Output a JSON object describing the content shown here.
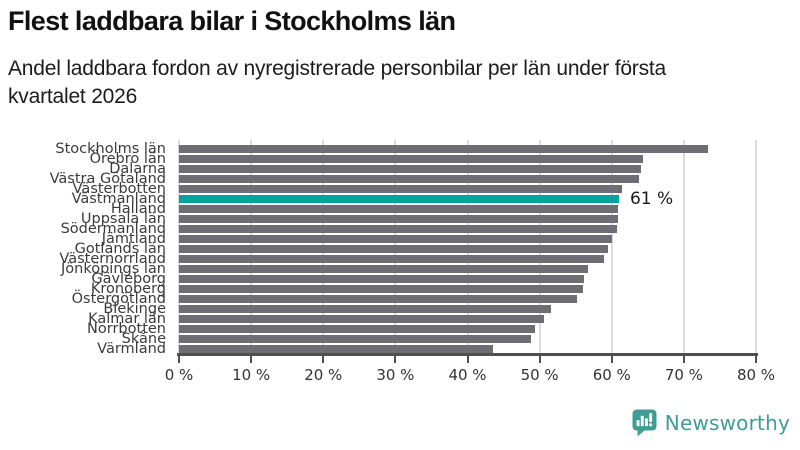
{
  "header": {
    "title": "Flest laddbara bilar i Stockholms län",
    "subtitle_lines": [
      "Andel laddbara fordon av nyregistrerade personbilar per län under första",
      "kvartalet 2026"
    ]
  },
  "footer": {
    "brand": "Newsworthy"
  },
  "colors": {
    "bar": "#6d6d73",
    "highlight": "#00a49c",
    "gridline": "#dbdbdb",
    "axis": "#4f4f4f",
    "tick_text": "#333333",
    "category_text": "#3b3b3b",
    "title_text": "#111111",
    "brand_teal": "#3f9d94",
    "background": "#ffffff"
  },
  "chart_data": {
    "type": "bar",
    "orientation": "horizontal",
    "title": "Flest laddbara bilar i Stockholms län",
    "subtitle": "Andel laddbara fordon av nyregistrerade personbilar per län under första kvartalet 2026",
    "unit": "%",
    "categories": [
      "Stockholms län",
      "Örebro län",
      "Dalarna",
      "Västra Götaland",
      "Västerbotten",
      "Västmanland",
      "Halland",
      "Uppsala län",
      "Södermanland",
      "Jämtland",
      "Gotlands län",
      "Västernorrland",
      "Jönköpings län",
      "Gävleborg",
      "Kronoberg",
      "Östergötland",
      "Blekinge",
      "Kalmar län",
      "Norrbotten",
      "Skåne",
      "Värmland"
    ],
    "values": [
      73.4,
      64.3,
      64.0,
      63.8,
      61.4,
      61.0,
      60.9,
      60.8,
      60.7,
      60.1,
      59.5,
      58.9,
      56.7,
      56.1,
      56.0,
      55.2,
      51.6,
      50.6,
      49.3,
      48.8,
      43.5
    ],
    "highlight": {
      "category": "Västmanland",
      "value": 61,
      "label": "61 %"
    },
    "xlim": [
      0,
      80
    ],
    "xticks": [
      0,
      10,
      20,
      30,
      40,
      50,
      60,
      70,
      80
    ],
    "xtick_labels": [
      "0 %",
      "10 %",
      "20 %",
      "30 %",
      "40 %",
      "50 %",
      "60 %",
      "70 %",
      "80 %"
    ],
    "grid": "vertical",
    "legend": "none",
    "bar_color": "#6d6d73",
    "highlight_color": "#00a49c"
  }
}
